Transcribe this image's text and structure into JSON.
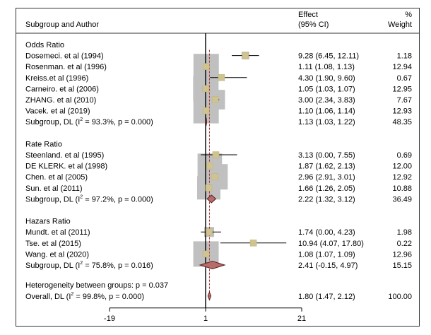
{
  "chart_data": {
    "type": "forest",
    "headers": {
      "left": "Subgroup and Author",
      "effect_top": "Effect",
      "effect_bottom": "(95% CI)",
      "weight_top": "%",
      "weight_bottom": "Weight"
    },
    "x_ticks": [
      "-19",
      "1",
      "21"
    ],
    "null_value": 1,
    "overall_estimate": 1.8,
    "groups": [
      {
        "title": "Odds Ratio",
        "studies": [
          {
            "label": "Dosemeci. et al (1994)",
            "est": 9.28,
            "lo": 6.45,
            "hi": 12.11,
            "ci_text": "9.28 (6.45, 12.11)",
            "weight": "1.18"
          },
          {
            "label": "Rosenman. et al (1996)",
            "est": 1.11,
            "lo": 1.08,
            "hi": 1.13,
            "ci_text": "1.11 (1.08, 1.13)",
            "weight": "12.94"
          },
          {
            "label": "Kreiss.et al (1996)",
            "est": 4.3,
            "lo": 1.9,
            "hi": 9.6,
            "ci_text": "4.30 (1.90, 9.60)",
            "weight": "0.67"
          },
          {
            "label": "Carneiro. et al (2006)",
            "est": 1.05,
            "lo": 1.03,
            "hi": 1.07,
            "ci_text": "1.05 (1.03, 1.07)",
            "weight": "12.95"
          },
          {
            "label": "ZHANG. et al (2010)",
            "est": 3.0,
            "lo": 2.34,
            "hi": 3.83,
            "ci_text": "3.00 (2.34, 3.83)",
            "weight": "7.67"
          },
          {
            "label": "Vacek. et al (2019)",
            "est": 1.1,
            "lo": 1.06,
            "hi": 1.14,
            "ci_text": "1.10 (1.06, 1.14)",
            "weight": "12.93"
          }
        ],
        "subgroup": {
          "label_pre": "Subgroup, DL (I",
          "sup": "2",
          "label_post": " = 93.3%, p = 0.000)",
          "est": 1.13,
          "lo": 1.03,
          "hi": 1.22,
          "ci_text": "1.13 (1.03, 1.22)",
          "weight": "48.35"
        }
      },
      {
        "title": "Rate Ratio",
        "studies": [
          {
            "label": "Steenland. et al (1995)",
            "est": 3.13,
            "lo": 0.0,
            "hi": 7.55,
            "ci_text": "3.13 (0.00, 7.55)",
            "weight": "0.69"
          },
          {
            "label": "DE KLERK. et al (1998)",
            "est": 1.87,
            "lo": 1.62,
            "hi": 2.13,
            "ci_text": "1.87 (1.62, 2.13)",
            "weight": "12.00"
          },
          {
            "label": "Chen. et al (2005)",
            "est": 2.96,
            "lo": 2.91,
            "hi": 3.01,
            "ci_text": "2.96 (2.91, 3.01)",
            "weight": "12.92"
          },
          {
            "label": "Sun. et al (2011)",
            "est": 1.66,
            "lo": 1.26,
            "hi": 2.05,
            "ci_text": "1.66 (1.26, 2.05)",
            "weight": "10.88"
          }
        ],
        "subgroup": {
          "label_pre": "Subgroup, DL (I",
          "sup": "2",
          "label_post": " = 97.2%, p = 0.000)",
          "est": 2.22,
          "lo": 1.32,
          "hi": 3.12,
          "ci_text": "2.22 (1.32, 3.12)",
          "weight": "36.49"
        }
      },
      {
        "title": "Hazars Ratio",
        "studies": [
          {
            "label": "Mundt. et al (2011)",
            "est": 1.74,
            "lo": 0.0,
            "hi": 4.23,
            "ci_text": "1.74 (0.00, 4.23)",
            "weight": "1.98"
          },
          {
            "label": "Tse. et al (2015)",
            "est": 10.94,
            "lo": 4.07,
            "hi": 17.8,
            "ci_text": "10.94 (4.07, 17.80)",
            "weight": "0.22"
          },
          {
            "label": "Wang. et al (2020)",
            "est": 1.08,
            "lo": 1.07,
            "hi": 1.09,
            "ci_text": "1.08 (1.07, 1.09)",
            "weight": "12.96"
          }
        ],
        "subgroup": {
          "label_pre": "Subgroup, DL (I",
          "sup": "2",
          "label_post": " = 75.8%, p = 0.016)",
          "est": 2.41,
          "lo": -0.15,
          "hi": 4.97,
          "ci_text": "2.41 (-0.15, 4.97)",
          "weight": "15.15"
        }
      }
    ],
    "heterogeneity": "Heterogeneity between groups: p = 0.037",
    "overall": {
      "label_pre": "Overall, DL (I",
      "sup": "2",
      "label_post": " = 99.8%, p = 0.000)",
      "est": 1.8,
      "lo": 1.47,
      "hi": 2.12,
      "ci_text": "1.80 (1.47, 2.12)",
      "weight": "100.00"
    },
    "colors": {
      "marker": "#cfc48f",
      "marker_edge": "#bdb27a",
      "weight_box": "#c0c0c0",
      "diamond": "#b86b6b",
      "diamond_edge": "#5a1f1f",
      "overall_line": "#a83030",
      "axis": "#000000"
    }
  }
}
